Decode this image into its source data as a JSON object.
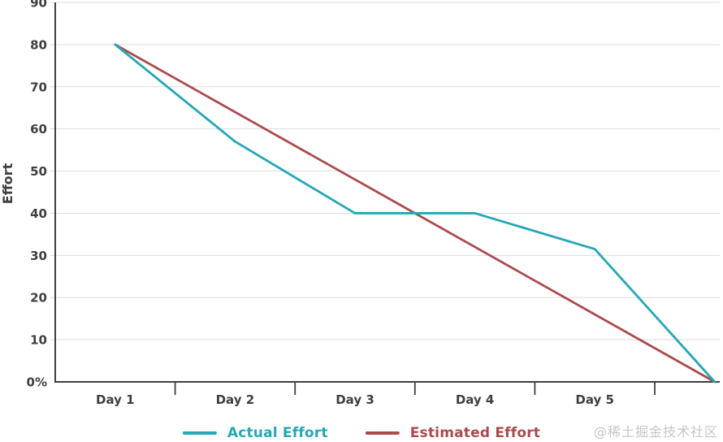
{
  "chart_data": {
    "type": "line",
    "title": "",
    "xlabel": "",
    "ylabel": "Effort",
    "categories": [
      "Day 1",
      "Day 2",
      "Day 3",
      "Day 4",
      "Day 5",
      ""
    ],
    "series": [
      {
        "name": "Actual Effort",
        "color": "#25a7b5",
        "values": [
          80,
          57,
          40,
          40,
          31.5,
          0
        ]
      },
      {
        "name": "Estimated Effort",
        "color": "#ab4a4d",
        "values": [
          80,
          64,
          48,
          32,
          16,
          0
        ]
      }
    ],
    "ylim": [
      0,
      90
    ],
    "ytick_step": 10,
    "ytick_labels": [
      "0%",
      "10",
      "20",
      "30",
      "40",
      "50",
      "60",
      "70",
      "80",
      "90"
    ],
    "grid": true,
    "legend_position": "bottom"
  },
  "colors": {
    "axis": "#3f3f3f",
    "grid": "#dcdcdc",
    "text": "#3f3f3f",
    "background": "#ffffff"
  },
  "watermark": "@稀土掘金技术社区"
}
